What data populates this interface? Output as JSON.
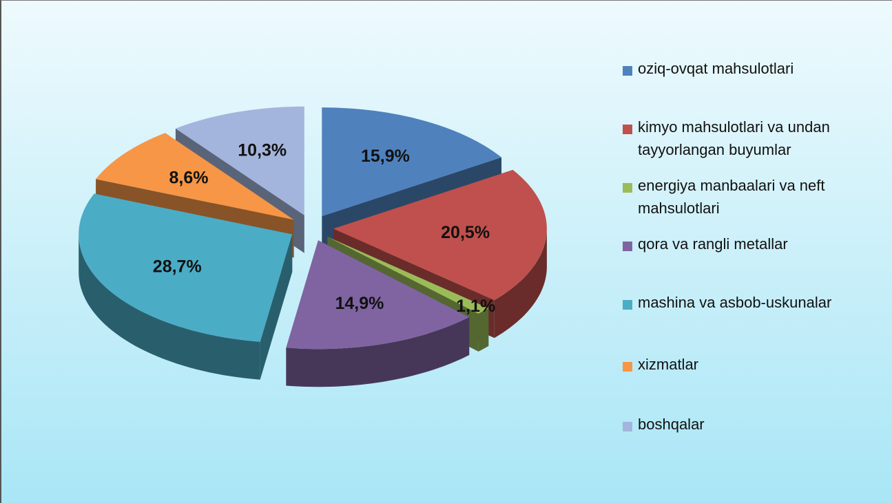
{
  "chart_data": {
    "type": "pie3d",
    "categories": [
      "oziq-ovqat mahsulotlari",
      "kimyo mahsulotlari va undan tayyorlangan buyumlar",
      "energiya manbaalari va neft mahsulotlari",
      "qora va rangli metallar",
      "mashina va asbob-uskunalar",
      "xizmatlar",
      "boshqalar"
    ],
    "values": [
      15.9,
      20.5,
      1.1,
      14.9,
      28.7,
      8.6,
      10.3
    ],
    "value_labels": [
      "15,9%",
      "20,5%",
      "1,1%",
      "14,9%",
      "28,7%",
      "8,6%",
      "10,3%"
    ],
    "colors": [
      "#4f81bd",
      "#c0504d",
      "#9bbb59",
      "#8064a2",
      "#4bacc6",
      "#f79646",
      "#a3b5dc"
    ],
    "legend": "right"
  }
}
